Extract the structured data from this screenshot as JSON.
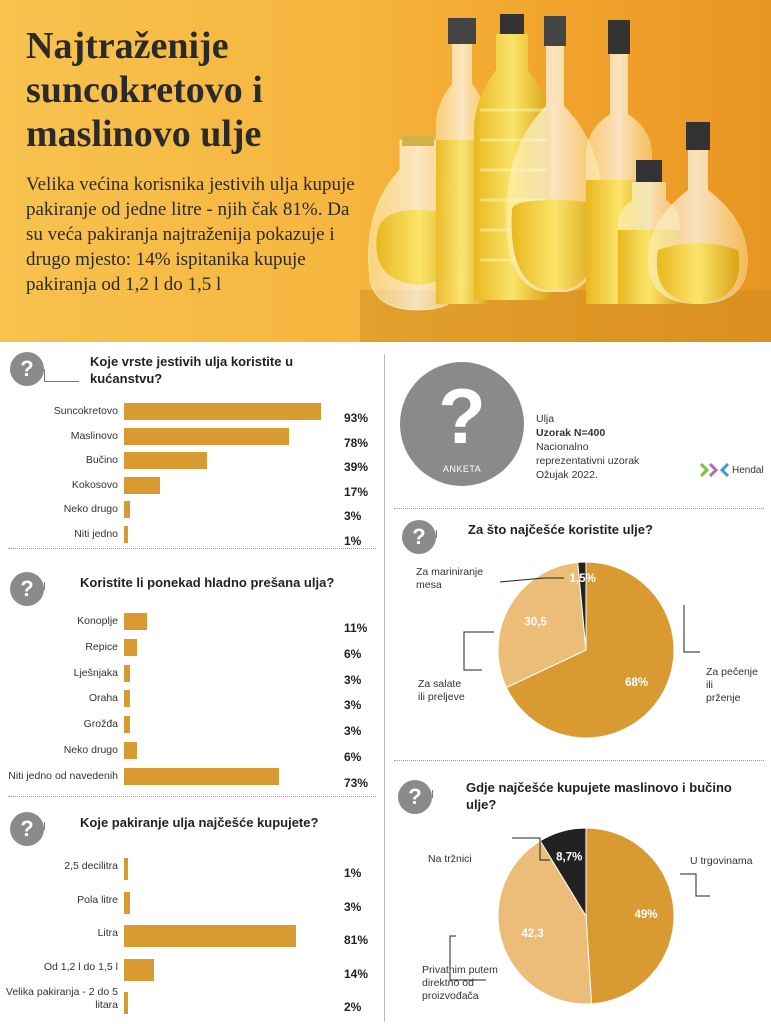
{
  "header": {
    "title": "Najtraženije suncokretovo i maslinovo ulje",
    "intro": "Velika većina korisnika jestivih ulja kupuje pakiranje od jedne litre - njih čak 81%. Da su veća pakiranja najtraženija pokazuje i drugo mjesto: 14% ispitanika kupuje pakiranja od 1,2 l do 1,5 l"
  },
  "survey": {
    "badge": "ANKETA",
    "line1": "Ulja",
    "line2": "Uzorak N=400",
    "line3": "Nacionalno",
    "line4": "reprezentativni uzorak",
    "line5": "Ožujak 2022.",
    "brand": "Hendal"
  },
  "chart_data": [
    {
      "type": "bar",
      "title": "Koje vrste jestivih ulja koristite u kućanstvu?",
      "categories": [
        "Suncokretovo",
        "Maslinovo",
        "Bučino",
        "Kokosovo",
        "Neko drugo",
        "Niti jedno"
      ],
      "values": [
        93,
        78,
        39,
        17,
        3,
        1
      ],
      "labels": [
        "93%",
        "78%",
        "39%",
        "17%",
        "3%",
        "1%"
      ],
      "color": "#d99a31"
    },
    {
      "type": "bar",
      "title": "Koristite li ponekad hladno prešana ulja?",
      "categories": [
        "Konoplje",
        "Repice",
        "Lješnjaka",
        "Oraha",
        "Grožđa",
        "Neko drugo",
        "Niti jedno od navedenih"
      ],
      "values": [
        11,
        6,
        3,
        3,
        3,
        6,
        73
      ],
      "labels": [
        "11%",
        "6%",
        "3%",
        "3%",
        "3%",
        "6%",
        "73%"
      ],
      "color": "#d99a31"
    },
    {
      "type": "bar",
      "title": "Koje pakiranje ulja najčešće kupujete?",
      "categories": [
        "2,5 decilitra",
        "Pola litre",
        "Litra",
        "Od 1,2 l do 1,5 l",
        "Velika pakiranja - 2 do 5 litara"
      ],
      "values": [
        1,
        3,
        81,
        14,
        2
      ],
      "labels": [
        "1%",
        "3%",
        "81%",
        "14%",
        "2%"
      ],
      "color": "#d99a31"
    },
    {
      "type": "pie",
      "title": "Za što najčešće koristite ulje?",
      "slices": [
        {
          "label": "Za pečenje ili prženje",
          "value": 68,
          "display": "68%",
          "color": "#d99a31"
        },
        {
          "label": "Za salate ili preljeve",
          "value": 30.5,
          "display": "30,5",
          "color": "#ecbd79"
        },
        {
          "label": "Za mariniranje mesa",
          "value": 1.5,
          "display": "1,5%",
          "color": "#222222"
        }
      ]
    },
    {
      "type": "pie",
      "title": "Gdje najčešće kupujete maslinovo i bučino ulje?",
      "slices": [
        {
          "label": "U trgovinama",
          "value": 49,
          "display": "49%",
          "color": "#d99a31"
        },
        {
          "label": "Privatnim putem direktno od proizvođača",
          "value": 42.3,
          "display": "42,3",
          "color": "#ecbd79"
        },
        {
          "label": "Na tržnici",
          "value": 8.7,
          "display": "8,7%",
          "color": "#222222"
        }
      ]
    }
  ]
}
